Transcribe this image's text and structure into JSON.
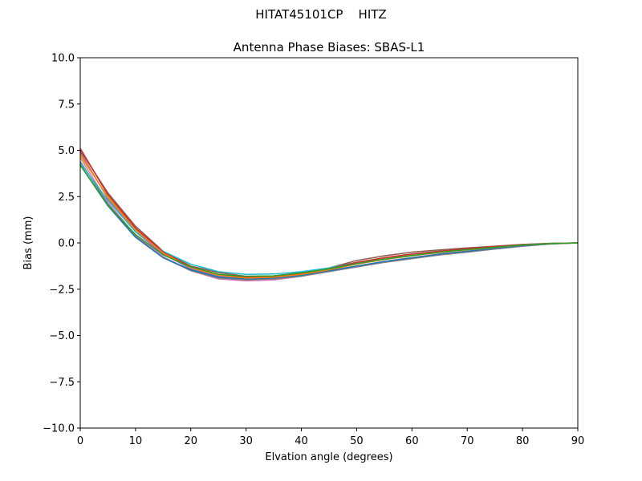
{
  "chart_data": {
    "type": "line",
    "suptitle": "HITAT45101CP    HITZ",
    "title": "Antenna Phase Biases: SBAS-L1",
    "xlabel": "Elvation angle (degrees)",
    "ylabel": "Bias (mm)",
    "xlim": [
      0,
      90
    ],
    "ylim": [
      -10,
      10
    ],
    "xticks": [
      0,
      10,
      20,
      30,
      40,
      50,
      60,
      70,
      80,
      90
    ],
    "xtick_labels": [
      "0",
      "10",
      "20",
      "30",
      "40",
      "50",
      "60",
      "70",
      "80",
      "90"
    ],
    "yticks": [
      -10,
      -7.5,
      -5,
      -2.5,
      0,
      2.5,
      5,
      7.5,
      10
    ],
    "ytick_labels": [
      "−10.0",
      "−7.5",
      "−5.0",
      "−2.5",
      "0.0",
      "2.5",
      "5.0",
      "7.5",
      "10.0"
    ],
    "grid": false,
    "x": [
      0,
      5,
      10,
      15,
      20,
      25,
      30,
      35,
      40,
      45,
      50,
      55,
      60,
      65,
      70,
      75,
      80,
      85,
      90
    ],
    "series": [
      {
        "color": "#9467bd",
        "values": [
          4.9,
          2.4,
          0.6,
          -0.6,
          -1.4,
          -1.8,
          -1.95,
          -1.9,
          -1.75,
          -1.5,
          -1.25,
          -1.0,
          -0.8,
          -0.6,
          -0.45,
          -0.3,
          -0.15,
          -0.05,
          0.0
        ]
      },
      {
        "color": "#e377c2",
        "values": [
          4.6,
          2.2,
          0.4,
          -0.75,
          -1.5,
          -1.95,
          -2.05,
          -2.0,
          -1.8,
          -1.55,
          -1.3,
          -1.05,
          -0.85,
          -0.65,
          -0.5,
          -0.33,
          -0.18,
          -0.06,
          0.0
        ]
      },
      {
        "color": "#8c564b",
        "values": [
          5.0,
          2.7,
          0.9,
          -0.45,
          -1.25,
          -1.6,
          -1.8,
          -1.78,
          -1.6,
          -1.35,
          -0.95,
          -0.7,
          -0.5,
          -0.38,
          -0.27,
          -0.18,
          -0.08,
          -0.02,
          0.0
        ]
      },
      {
        "color": "#7f7f7f",
        "values": [
          4.4,
          2.1,
          0.35,
          -0.8,
          -1.5,
          -1.9,
          -2.0,
          -1.95,
          -1.8,
          -1.55,
          -1.3,
          -1.05,
          -0.85,
          -0.65,
          -0.5,
          -0.33,
          -0.18,
          -0.06,
          0.0
        ]
      },
      {
        "color": "#bcbd22",
        "values": [
          4.7,
          2.5,
          0.75,
          -0.5,
          -1.3,
          -1.7,
          -1.85,
          -1.82,
          -1.65,
          -1.4,
          -1.1,
          -0.85,
          -0.65,
          -0.5,
          -0.36,
          -0.24,
          -0.12,
          -0.04,
          0.0
        ]
      },
      {
        "color": "#17becf",
        "values": [
          4.3,
          2.3,
          0.6,
          -0.45,
          -1.15,
          -1.55,
          -1.7,
          -1.68,
          -1.55,
          -1.35,
          -1.05,
          -0.8,
          -0.6,
          -0.45,
          -0.33,
          -0.22,
          -0.1,
          -0.03,
          0.0
        ]
      },
      {
        "color": "#1f77b4",
        "values": [
          4.2,
          2.0,
          0.3,
          -0.8,
          -1.45,
          -1.85,
          -1.95,
          -1.9,
          -1.75,
          -1.5,
          -1.25,
          -1.0,
          -0.8,
          -0.6,
          -0.45,
          -0.3,
          -0.15,
          -0.05,
          0.0
        ]
      },
      {
        "color": "#d62728",
        "values": [
          5.1,
          2.6,
          0.8,
          -0.5,
          -1.3,
          -1.7,
          -1.85,
          -1.82,
          -1.65,
          -1.4,
          -1.05,
          -0.8,
          -0.6,
          -0.45,
          -0.32,
          -0.2,
          -0.1,
          -0.03,
          0.0
        ]
      },
      {
        "color": "#ff7f0e",
        "values": [
          4.8,
          2.45,
          0.7,
          -0.55,
          -1.35,
          -1.75,
          -1.9,
          -1.85,
          -1.7,
          -1.45,
          -1.15,
          -0.9,
          -0.7,
          -0.52,
          -0.38,
          -0.25,
          -0.12,
          -0.04,
          0.0
        ]
      },
      {
        "color": "#2ca02c",
        "values": [
          4.2,
          2.05,
          0.45,
          -0.65,
          -1.3,
          -1.7,
          -1.8,
          -1.78,
          -1.62,
          -1.4,
          -1.12,
          -0.88,
          -0.68,
          -0.5,
          -0.36,
          -0.24,
          -0.12,
          -0.04,
          0.0
        ]
      }
    ]
  }
}
